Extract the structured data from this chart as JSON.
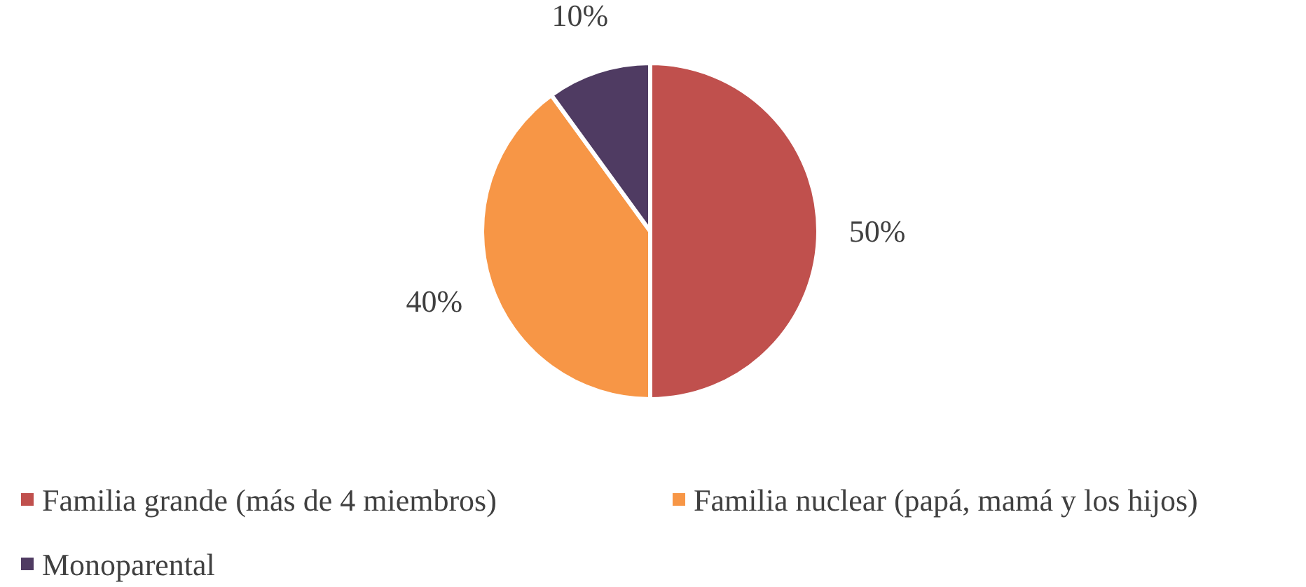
{
  "chart_data": {
    "type": "pie",
    "categories": [
      "Familia grande (más de 4 miembros)",
      "Familia nuclear (papá, mamá y los hijos)",
      "Monoparental"
    ],
    "values": [
      50,
      40,
      10
    ],
    "colors": [
      "#c0504d",
      "#f79646",
      "#4f3b62"
    ],
    "value_labels": [
      "50%",
      "40%",
      "10%"
    ],
    "legend": "bottom"
  }
}
